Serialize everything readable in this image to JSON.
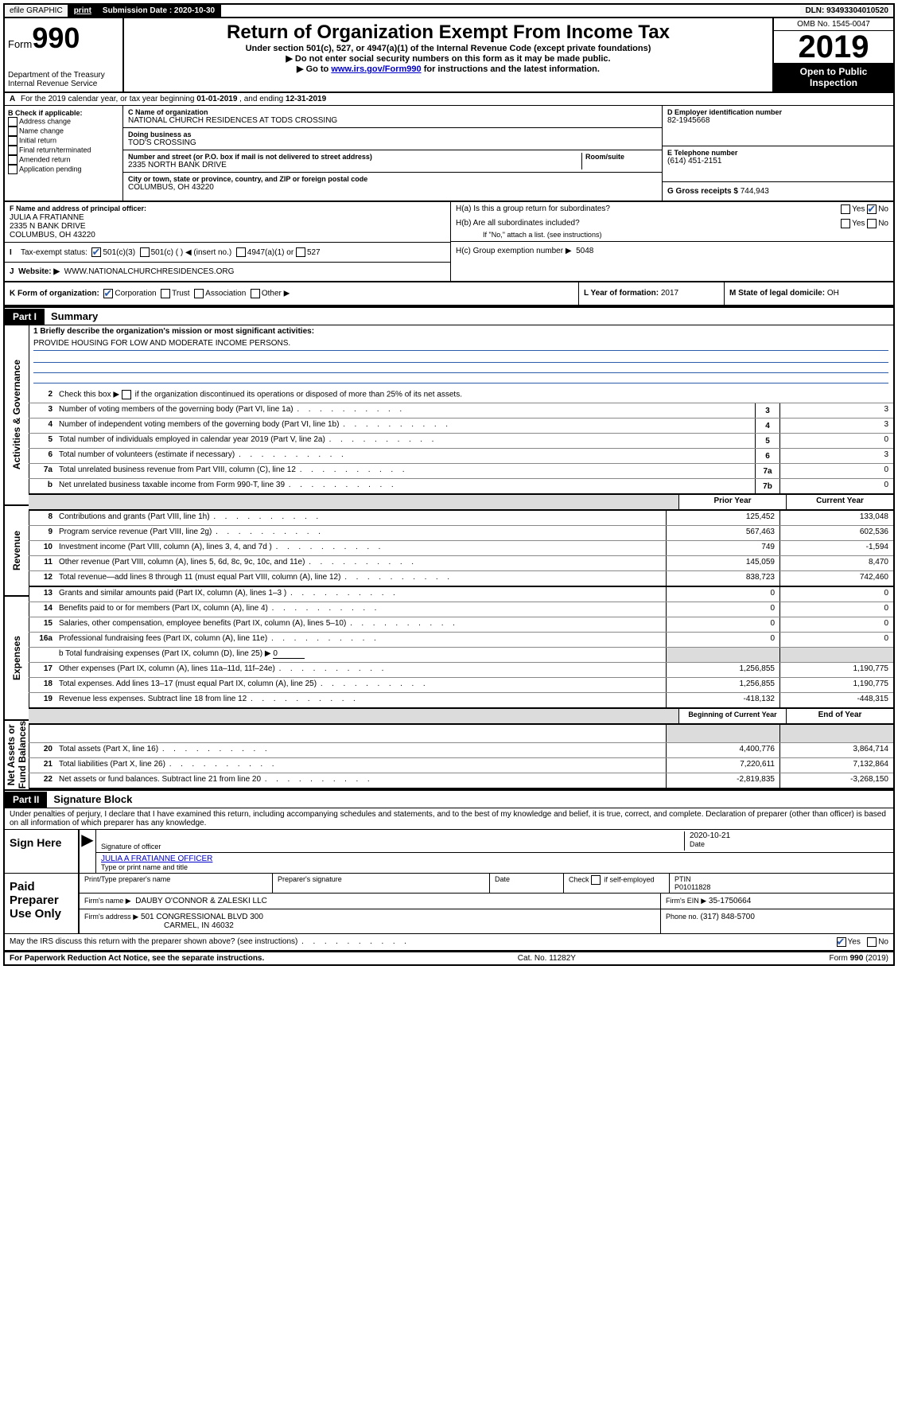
{
  "topbar": {
    "efile": "efile GRAPHIC",
    "print": "print",
    "submission_label": "Submission Date : ",
    "submission_date": "2020-10-30",
    "dln_label": "DLN: ",
    "dln": "93493304010520"
  },
  "header": {
    "form_label": "Form",
    "form_number": "990",
    "title": "Return of Organization Exempt From Income Tax",
    "subtitle": "Under section 501(c), 527, or 4947(a)(1) of the Internal Revenue Code (except private foundations)",
    "warn1": "Do not enter social security numbers on this form as it may be made public.",
    "warn2_pre": "Go to ",
    "warn2_link": "www.irs.gov/Form990",
    "warn2_post": " for instructions and the latest information.",
    "dept": "Department of the Treasury\nInternal Revenue Service",
    "omb": "OMB No. 1545-0047",
    "year": "2019",
    "open_pub": "Open to Public Inspection"
  },
  "row_a": {
    "text_pre": "For the 2019 calendar year, or tax year beginning ",
    "begin": "01-01-2019",
    "mid": " , and ending ",
    "end": "12-31-2019",
    "letter": "A"
  },
  "box_b": {
    "title": "B Check if applicable:",
    "opts": [
      "Address change",
      "Name change",
      "Initial return",
      "Final return/terminated",
      "Amended return",
      "Application pending"
    ]
  },
  "box_c": {
    "name_label": "C Name of organization",
    "name": "NATIONAL CHURCH RESIDENCES AT TODS CROSSING",
    "dba_label": "Doing business as",
    "dba": "TOD'S CROSSING",
    "addr_label": "Number and street (or P.O. box if mail is not delivered to street address)",
    "room_label": "Room/suite",
    "addr": "2335 NORTH BANK DRIVE",
    "city_label": "City or town, state or province, country, and ZIP or foreign postal code",
    "city": "COLUMBUS, OH  43220"
  },
  "box_d": {
    "label": "D Employer identification number",
    "val": "82-1945668"
  },
  "box_e": {
    "label": "E Telephone number",
    "val": "(614) 451-2151"
  },
  "box_g": {
    "label": "G Gross receipts $ ",
    "val": "744,943"
  },
  "box_f": {
    "label": "F  Name and address of principal officer:",
    "name": "JULIA A FRATIANNE",
    "addr1": "2335 N BANK DRIVE",
    "addr2": "COLUMBUS, OH  43220"
  },
  "box_h": {
    "ha_label": "H(a)  Is this a group return for subordinates?",
    "hb_label": "H(b)  Are all subordinates included?",
    "note": "If \"No,\" attach a list. (see instructions)",
    "hc_label": "H(c)  Group exemption number ▶",
    "hc_val": "5048",
    "yes": "Yes",
    "no": "No"
  },
  "box_i": {
    "label": "Tax-exempt status:",
    "opts": [
      "501(c)(3)",
      "501(c) (   ) ◀ (insert no.)",
      "4947(a)(1) or",
      "527"
    ]
  },
  "box_j": {
    "label": "Website: ▶",
    "val": "WWW.NATIONALCHURCHRESIDENCES.ORG"
  },
  "box_k": {
    "label": "K Form of organization:",
    "opts": [
      "Corporation",
      "Trust",
      "Association",
      "Other ▶"
    ]
  },
  "box_l": {
    "label": "L Year of formation: ",
    "val": "2017"
  },
  "box_m": {
    "label": "M State of legal domicile: ",
    "val": "OH"
  },
  "part1": {
    "tag": "Part I",
    "title": "Summary"
  },
  "summary": {
    "mission_label": "1  Briefly describe the organization's mission or most significant activities:",
    "mission": "PROVIDE HOUSING FOR LOW AND MODERATE INCOME PERSONS.",
    "line2": "Check this box ▶       if the organization discontinued its operations or disposed of more than 25% of its net assets.",
    "lines_single": [
      {
        "n": "3",
        "d": "Number of voting members of the governing body (Part VI, line 1a)",
        "box": "3",
        "v": "3"
      },
      {
        "n": "4",
        "d": "Number of independent voting members of the governing body (Part VI, line 1b)",
        "box": "4",
        "v": "3"
      },
      {
        "n": "5",
        "d": "Total number of individuals employed in calendar year 2019 (Part V, line 2a)",
        "box": "5",
        "v": "0"
      },
      {
        "n": "6",
        "d": "Total number of volunteers (estimate if necessary)",
        "box": "6",
        "v": "3"
      },
      {
        "n": "7a",
        "d": "Total unrelated business revenue from Part VIII, column (C), line 12",
        "box": "7a",
        "v": "0"
      },
      {
        "n": "b",
        "d": "Net unrelated business taxable income from Form 990-T, line 39",
        "box": "7b",
        "v": "0"
      }
    ],
    "col_hdr_prior": "Prior Year",
    "col_hdr_curr": "Current Year",
    "revenue": [
      {
        "n": "8",
        "d": "Contributions and grants (Part VIII, line 1h)",
        "p": "125,452",
        "c": "133,048"
      },
      {
        "n": "9",
        "d": "Program service revenue (Part VIII, line 2g)",
        "p": "567,463",
        "c": "602,536"
      },
      {
        "n": "10",
        "d": "Investment income (Part VIII, column (A), lines 3, 4, and 7d )",
        "p": "749",
        "c": "-1,594"
      },
      {
        "n": "11",
        "d": "Other revenue (Part VIII, column (A), lines 5, 6d, 8c, 9c, 10c, and 11e)",
        "p": "145,059",
        "c": "8,470"
      },
      {
        "n": "12",
        "d": "Total revenue—add lines 8 through 11 (must equal Part VIII, column (A), line 12)",
        "p": "838,723",
        "c": "742,460"
      }
    ],
    "expenses": [
      {
        "n": "13",
        "d": "Grants and similar amounts paid (Part IX, column (A), lines 1–3 )",
        "p": "0",
        "c": "0"
      },
      {
        "n": "14",
        "d": "Benefits paid to or for members (Part IX, column (A), line 4)",
        "p": "0",
        "c": "0"
      },
      {
        "n": "15",
        "d": "Salaries, other compensation, employee benefits (Part IX, column (A), lines 5–10)",
        "p": "0",
        "c": "0"
      },
      {
        "n": "16a",
        "d": "Professional fundraising fees (Part IX, column (A), line 11e)",
        "p": "0",
        "c": "0"
      }
    ],
    "line16b_pre": "b   Total fundraising expenses (Part IX, column (D), line 25) ▶",
    "line16b_val": "0",
    "expenses2": [
      {
        "n": "17",
        "d": "Other expenses (Part IX, column (A), lines 11a–11d, 11f–24e)",
        "p": "1,256,855",
        "c": "1,190,775"
      },
      {
        "n": "18",
        "d": "Total expenses. Add lines 13–17 (must equal Part IX, column (A), line 25)",
        "p": "1,256,855",
        "c": "1,190,775"
      },
      {
        "n": "19",
        "d": "Revenue less expenses. Subtract line 18 from line 12",
        "p": "-418,132",
        "c": "-448,315"
      }
    ],
    "col_hdr_begin": "Beginning of Current Year",
    "col_hdr_end": "End of Year",
    "netassets": [
      {
        "n": "20",
        "d": "Total assets (Part X, line 16)",
        "p": "4,400,776",
        "c": "3,864,714"
      },
      {
        "n": "21",
        "d": "Total liabilities (Part X, line 26)",
        "p": "7,220,611",
        "c": "7,132,864"
      },
      {
        "n": "22",
        "d": "Net assets or fund balances. Subtract line 21 from line 20",
        "p": "-2,819,835",
        "c": "-3,268,150"
      }
    ],
    "vlabels": {
      "ag": "Activities & Governance",
      "rev": "Revenue",
      "exp": "Expenses",
      "na": "Net Assets or\nFund Balances"
    }
  },
  "part2": {
    "tag": "Part II",
    "title": "Signature Block"
  },
  "declaration": "Under penalties of perjury, I declare that I have examined this return, including accompanying schedules and statements, and to the best of my knowledge and belief, it is true, correct, and complete. Declaration of preparer (other than officer) is based on all information of which preparer has any knowledge.",
  "sign": {
    "here": "Sign Here",
    "sig_label": "Signature of officer",
    "date": "2020-10-21",
    "date_label": "Date",
    "name": "JULIA A FRATIANNE  OFFICER",
    "name_label": "Type or print name and title"
  },
  "paid": {
    "label": "Paid Preparer Use Only",
    "h1": "Print/Type preparer's name",
    "h2": "Preparer's signature",
    "h3": "Date",
    "h4_pre": "Check",
    "h4_post": "if self-employed",
    "h5": "PTIN",
    "ptin": "P01011828",
    "firm_label": "Firm's name     ▶",
    "firm": "DAUBY O'CONNOR & ZALESKI LLC",
    "ein_label": "Firm's EIN ▶",
    "ein": "35-1750664",
    "addr_label": "Firm's address ▶",
    "addr1": "501 CONGRESSIONAL BLVD 300",
    "addr2": "CARMEL, IN  46032",
    "phone_label": "Phone no. ",
    "phone": "(317) 848-5700"
  },
  "discuss": {
    "q": "May the IRS discuss this return with the preparer shown above? (see instructions)",
    "yes": "Yes",
    "no": "No"
  },
  "footer": {
    "left": "For Paperwork Reduction Act Notice, see the separate instructions.",
    "mid": "Cat. No. 11282Y",
    "right_pre": "Form ",
    "right_b": "990",
    "right_post": " (2019)"
  },
  "colors": {
    "link": "#0000cc",
    "check": "#2a5caa",
    "rule": "#000000",
    "gray": "#dcdcdc"
  }
}
